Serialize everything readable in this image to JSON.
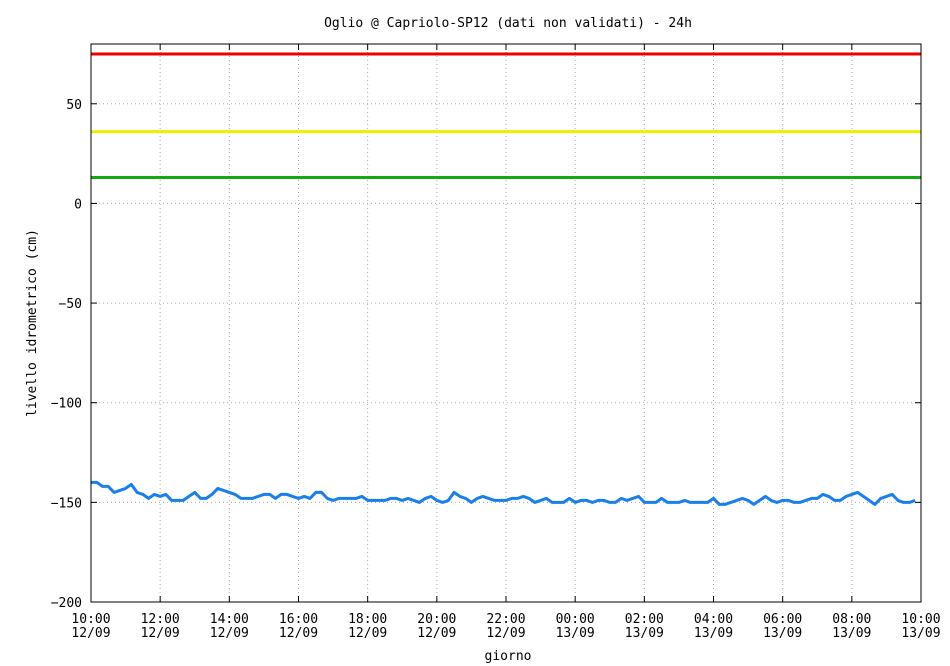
{
  "chart_data": {
    "type": "line",
    "title": "Oglio @ Capriolo-SP12 (dati non validati) - 24h",
    "xlabel": "giorno",
    "ylabel": "livello idrometrico (cm)",
    "ylim": [
      -200,
      80
    ],
    "yticks": [
      -200,
      -150,
      -100,
      -50,
      0,
      50
    ],
    "xlim": [
      "12/09 10:00",
      "13/09 10:00"
    ],
    "grid": true,
    "xticks": [
      {
        "time": "10:00",
        "date": "12/09"
      },
      {
        "time": "12:00",
        "date": "12/09"
      },
      {
        "time": "14:00",
        "date": "12/09"
      },
      {
        "time": "16:00",
        "date": "12/09"
      },
      {
        "time": "18:00",
        "date": "12/09"
      },
      {
        "time": "20:00",
        "date": "12/09"
      },
      {
        "time": "22:00",
        "date": "12/09"
      },
      {
        "time": "00:00",
        "date": "13/09"
      },
      {
        "time": "02:00",
        "date": "13/09"
      },
      {
        "time": "04:00",
        "date": "13/09"
      },
      {
        "time": "06:00",
        "date": "13/09"
      },
      {
        "time": "08:00",
        "date": "13/09"
      },
      {
        "time": "10:00",
        "date": "13/09"
      }
    ],
    "thresholds": [
      {
        "value": 75,
        "color": "#ee0000"
      },
      {
        "value": 36,
        "color": "#eeee00"
      },
      {
        "value": 13,
        "color": "#11aa11"
      }
    ],
    "series": [
      {
        "color": "#1a7fe8",
        "x": [
          "12/09 10:00",
          "12/09 10:10",
          "12/09 10:20",
          "12/09 10:30",
          "12/09 10:40",
          "12/09 10:50",
          "12/09 11:00",
          "12/09 11:10",
          "12/09 11:20",
          "12/09 11:30",
          "12/09 11:40",
          "12/09 11:50",
          "12/09 12:00",
          "12/09 12:10",
          "12/09 12:20",
          "12/09 12:30",
          "12/09 12:40",
          "12/09 12:50",
          "12/09 13:00",
          "12/09 13:10",
          "12/09 13:20",
          "12/09 13:30",
          "12/09 13:40",
          "12/09 13:50",
          "12/09 14:00",
          "12/09 14:10",
          "12/09 14:20",
          "12/09 14:30",
          "12/09 14:40",
          "12/09 14:50",
          "12/09 15:00",
          "12/09 15:10",
          "12/09 15:20",
          "12/09 15:30",
          "12/09 15:40",
          "12/09 15:50",
          "12/09 16:00",
          "12/09 16:10",
          "12/09 16:20",
          "12/09 16:30",
          "12/09 16:40",
          "12/09 16:50",
          "12/09 17:00",
          "12/09 17:10",
          "12/09 17:20",
          "12/09 17:30",
          "12/09 17:40",
          "12/09 17:50",
          "12/09 18:00",
          "12/09 18:10",
          "12/09 18:20",
          "12/09 18:30",
          "12/09 18:40",
          "12/09 18:50",
          "12/09 19:00",
          "12/09 19:10",
          "12/09 19:20",
          "12/09 19:30",
          "12/09 19:40",
          "12/09 19:50",
          "12/09 20:00",
          "12/09 20:10",
          "12/09 20:20",
          "12/09 20:30",
          "12/09 20:40",
          "12/09 20:50",
          "12/09 21:00",
          "12/09 21:10",
          "12/09 21:20",
          "12/09 21:30",
          "12/09 21:40",
          "12/09 21:50",
          "12/09 22:00",
          "12/09 22:10",
          "12/09 22:20",
          "12/09 22:30",
          "12/09 22:40",
          "12/09 22:50",
          "12/09 23:00",
          "12/09 23:10",
          "12/09 23:20",
          "12/09 23:30",
          "12/09 23:40",
          "12/09 23:50",
          "13/09 00:00",
          "13/09 00:10",
          "13/09 00:20",
          "13/09 00:30",
          "13/09 00:40",
          "13/09 00:50",
          "13/09 01:00",
          "13/09 01:10",
          "13/09 01:20",
          "13/09 01:30",
          "13/09 01:40",
          "13/09 01:50",
          "13/09 02:00",
          "13/09 02:10",
          "13/09 02:20",
          "13/09 02:30",
          "13/09 02:40",
          "13/09 02:50",
          "13/09 03:00",
          "13/09 03:10",
          "13/09 03:20",
          "13/09 03:30",
          "13/09 03:40",
          "13/09 03:50",
          "13/09 04:00",
          "13/09 04:10",
          "13/09 04:20",
          "13/09 04:30",
          "13/09 04:40",
          "13/09 04:50",
          "13/09 05:00",
          "13/09 05:10",
          "13/09 05:20",
          "13/09 05:30",
          "13/09 05:40",
          "13/09 05:50",
          "13/09 06:00",
          "13/09 06:10",
          "13/09 06:20",
          "13/09 06:30",
          "13/09 06:40",
          "13/09 06:50",
          "13/09 07:00",
          "13/09 07:10",
          "13/09 07:20",
          "13/09 07:30",
          "13/09 07:40",
          "13/09 07:50",
          "13/09 08:00",
          "13/09 08:10",
          "13/09 08:20",
          "13/09 08:30",
          "13/09 08:40",
          "13/09 08:50",
          "13/09 09:00",
          "13/09 09:10",
          "13/09 09:20",
          "13/09 09:30",
          "13/09 09:40",
          "13/09 09:50"
        ],
        "values": [
          -140,
          -140,
          -142,
          -142,
          -145,
          -144,
          -143,
          -141,
          -145,
          -146,
          -148,
          -146,
          -147,
          -146,
          -149,
          -149,
          -149,
          -147,
          -145,
          -148,
          -148,
          -146,
          -143,
          -144,
          -145,
          -146,
          -148,
          -148,
          -148,
          -147,
          -146,
          -146,
          -148,
          -146,
          -146,
          -147,
          -148,
          -147,
          -148,
          -145,
          -145,
          -148,
          -149,
          -148,
          -148,
          -148,
          -148,
          -147,
          -149,
          -149,
          -149,
          -149,
          -148,
          -148,
          -149,
          -148,
          -149,
          -150,
          -148,
          -147,
          -149,
          -150,
          -149,
          -145,
          -147,
          -148,
          -150,
          -148,
          -147,
          -148,
          -149,
          -149,
          -149,
          -148,
          -148,
          -147,
          -148,
          -150,
          -149,
          -148,
          -150,
          -150,
          -150,
          -148,
          -150,
          -149,
          -149,
          -150,
          -149,
          -149,
          -150,
          -150,
          -148,
          -149,
          -148,
          -147,
          -150,
          -150,
          -150,
          -148,
          -150,
          -150,
          -150,
          -149,
          -150,
          -150,
          -150,
          -150,
          -148,
          -151,
          -151,
          -150,
          -149,
          -148,
          -149,
          -151,
          -149,
          -147,
          -149,
          -150,
          -149,
          -149,
          -150,
          -150,
          -149,
          -148,
          -148,
          -146,
          -147,
          -149,
          -149,
          -147,
          -146,
          -145,
          -147,
          -149,
          -151,
          -148,
          -147,
          -146,
          -149,
          -150,
          -150,
          -149
        ]
      }
    ]
  }
}
